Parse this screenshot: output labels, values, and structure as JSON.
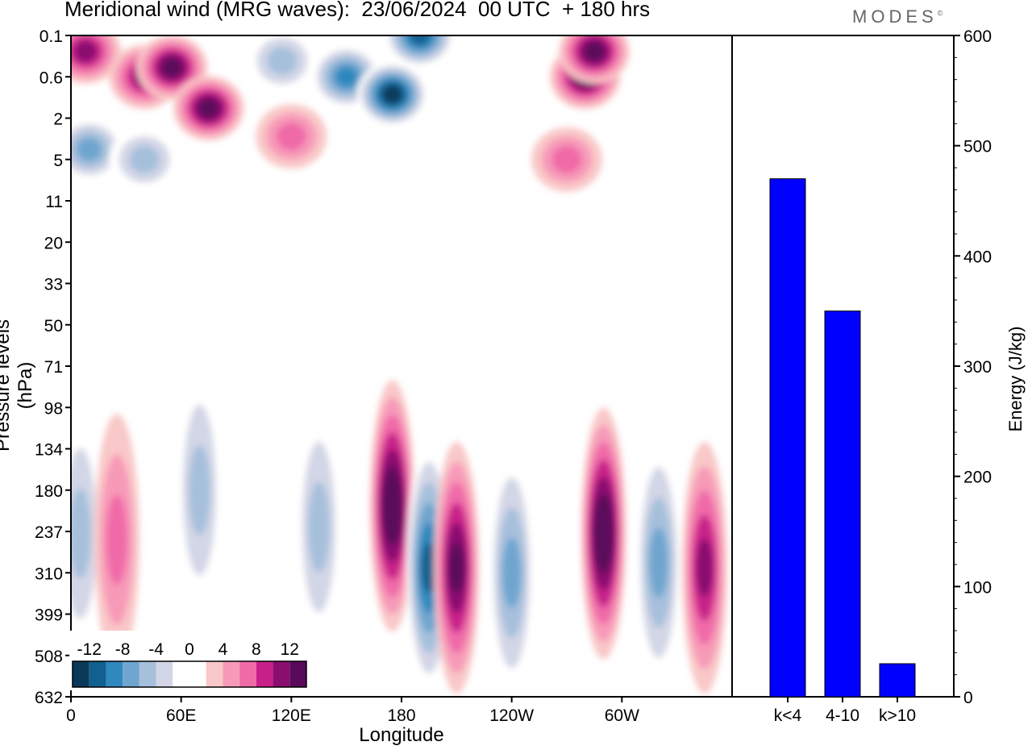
{
  "title": "Meridional wind (MRG waves):  23/06/2024  00 UTC  + 180 hrs",
  "logo": "MODES",
  "logo_mark": "©",
  "colors": {
    "bar": "#0000ff",
    "scale": [
      "#0a3a5a",
      "#12608f",
      "#2f88be",
      "#6fa5cf",
      "#a6c0dc",
      "#d3d6e6",
      "#ffffff",
      "#ffffff",
      "#f9c8c8",
      "#f79ab8",
      "#f06aa8",
      "#c8208a",
      "#8a0e70",
      "#5a0a5a"
    ]
  },
  "chart_data": [
    {
      "type": "heatmap",
      "xlabel": "Longitude",
      "ylabel": "Pressure levels (hPa)",
      "x_ticks": [
        "0",
        "60E",
        "120E",
        "180",
        "120W",
        "60W"
      ],
      "y_ticks": [
        "0.1",
        "0.6",
        "2",
        "5",
        "11",
        "20",
        "33",
        "50",
        "71",
        "98",
        "134",
        "180",
        "237",
        "310",
        "399",
        "508",
        "632"
      ],
      "colorbar_labels": [
        "-12",
        "-8",
        "-4",
        "0",
        "4",
        "8",
        "12"
      ],
      "colorbar_values": [
        -14,
        -12,
        -10,
        -8,
        -6,
        -4,
        -2,
        0,
        2,
        4,
        6,
        8,
        10,
        12
      ],
      "features": [
        {
          "lon": 8,
          "level": 0.2,
          "value": 9
        },
        {
          "lon": 40,
          "level": 0.6,
          "value": 10
        },
        {
          "lon": 55,
          "level": 0.4,
          "value": 11
        },
        {
          "lon": 75,
          "level": 1.5,
          "value": 11
        },
        {
          "lon": 10,
          "level": 4,
          "value": -7
        },
        {
          "lon": 40,
          "level": 5,
          "value": -6
        },
        {
          "lon": 120,
          "level": 3,
          "value": 6
        },
        {
          "lon": 115,
          "level": 0.3,
          "value": -6
        },
        {
          "lon": 150,
          "level": 0.6,
          "value": -10
        },
        {
          "lon": 175,
          "level": 1,
          "value": -14
        },
        {
          "lon": 190,
          "level": 0.1,
          "value": -12
        },
        {
          "lon": 280,
          "level": 0.6,
          "value": 12
        },
        {
          "lon": 285,
          "level": 0.2,
          "value": 12
        },
        {
          "lon": 270,
          "level": 5,
          "value": 6
        },
        {
          "lon": 5,
          "level": 240,
          "value": -6
        },
        {
          "lon": 25,
          "level": 250,
          "value": 5
        },
        {
          "lon": 70,
          "level": 180,
          "value": -5
        },
        {
          "lon": 135,
          "level": 230,
          "value": -6
        },
        {
          "lon": 175,
          "level": 200,
          "value": 13
        },
        {
          "lon": 195,
          "level": 300,
          "value": -12
        },
        {
          "lon": 210,
          "level": 300,
          "value": 11
        },
        {
          "lon": 240,
          "level": 310,
          "value": -7
        },
        {
          "lon": 290,
          "level": 240,
          "value": 13
        },
        {
          "lon": 320,
          "level": 290,
          "value": -7
        },
        {
          "lon": 345,
          "level": 300,
          "value": 10
        }
      ]
    },
    {
      "type": "bar",
      "categories": [
        "k<4",
        "4-10",
        "k>10"
      ],
      "values": [
        470,
        350,
        30
      ],
      "ylabel": "Energy (J/kg)",
      "ylim": [
        0,
        600
      ],
      "y_ticks": [
        "0",
        "100",
        "200",
        "300",
        "400",
        "500",
        "600"
      ]
    }
  ]
}
